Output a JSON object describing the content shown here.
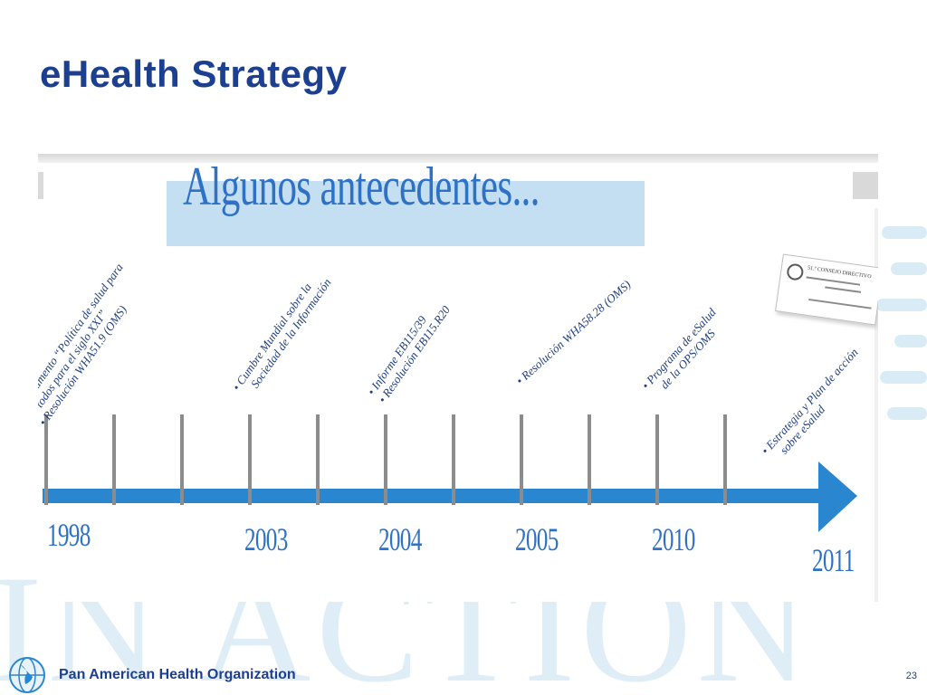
{
  "slide": {
    "title": "eHealth Strategy",
    "image": {
      "heading": "Algunos antecedentes...",
      "events": [
        {
          "lines": [
            "• Documento “Política de salud para",
            "todos para el siglo XXI”",
            "• Resolución WHA51.9 (OMS)"
          ]
        },
        {
          "lines": [
            "• Cumbre Mundial sobre la",
            "Sociedad de la Información"
          ]
        },
        {
          "lines": [
            "• Informe EB115/39",
            "• Resolución EB115.R20"
          ]
        },
        {
          "lines": [
            "• Resolución WHA58.28 (OMS)"
          ]
        },
        {
          "lines": [
            "• Programa de eSalud",
            "de la OPS/OMS"
          ]
        },
        {
          "lines": [
            "• Estrategia y Plan de acción",
            "sobre eSalud"
          ]
        }
      ],
      "years": [
        "1998",
        "2003",
        "2004",
        "2005",
        "2010",
        "2011"
      ],
      "document_thumbnail": {
        "header": "51.º CONSEJO DIRECTIVO",
        "colors": {
          "line": "#8a8a8a"
        }
      }
    },
    "watermark": "IN ACTION",
    "footer": {
      "organization": "Pan American Health Organization",
      "page_number": "23"
    }
  },
  "colors": {
    "title": "#1c3f8f",
    "arrow": "#2a86cf",
    "tick": "#8c8c8c",
    "year": "#2e72c7",
    "heading_band": "#c4def2"
  }
}
